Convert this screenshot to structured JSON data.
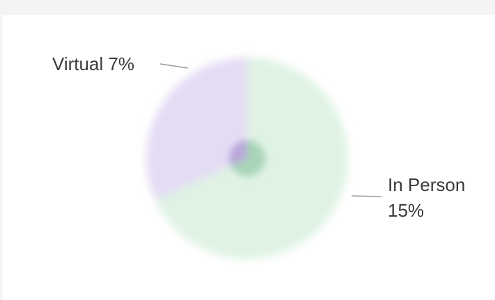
{
  "chart_data": {
    "type": "pie",
    "categories": [
      "Virtual",
      "In Person"
    ],
    "values": [
      7,
      15
    ],
    "value_labels": [
      "7%",
      "15%"
    ],
    "colors": [
      "#e4dcf4",
      "#dff3e4"
    ],
    "center_colors": [
      "#b9a8d9",
      "#a9d4b8"
    ]
  }
}
